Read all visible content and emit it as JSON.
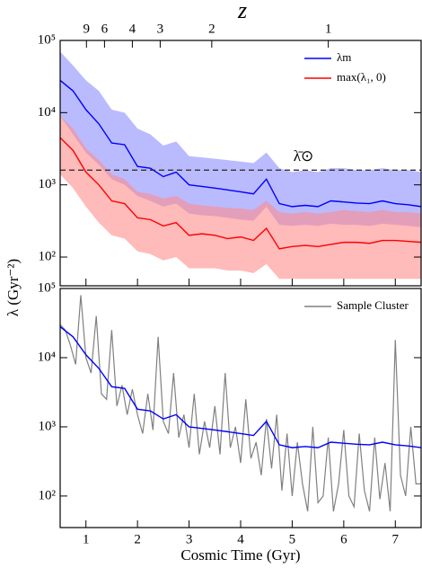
{
  "chart_data": [
    {
      "type": "line",
      "log_y": true,
      "x2label": "z",
      "xlim": [
        0.5,
        7.5
      ],
      "ylim": [
        40,
        100000
      ],
      "yticks": [
        {
          "value": 100,
          "label": "10²"
        },
        {
          "value": 1000,
          "label": "10³"
        },
        {
          "value": 10000,
          "label": "10⁴"
        },
        {
          "value": 100000,
          "label": "10⁵"
        }
      ],
      "x2ticks": [
        {
          "value": 1.01,
          "label": "9"
        },
        {
          "value": 1.36,
          "label": "6"
        },
        {
          "value": 1.9,
          "label": "4"
        },
        {
          "value": 2.44,
          "label": "3"
        },
        {
          "value": 3.44,
          "label": "2"
        },
        {
          "value": 5.7,
          "label": "1"
        }
      ],
      "legend": "upper right",
      "hline": {
        "value": 1600,
        "label": "λ̄⊙",
        "color": "#333333"
      },
      "series": [
        {
          "name": "λm",
          "color": "#0000ff",
          "band_color": "#8c8cff",
          "x": [
            0.5,
            0.75,
            1.0,
            1.25,
            1.5,
            1.75,
            2.0,
            2.25,
            2.5,
            2.75,
            3.0,
            3.25,
            3.5,
            3.75,
            4.0,
            4.25,
            4.5,
            4.75,
            5.0,
            5.25,
            5.5,
            5.75,
            6.0,
            6.25,
            6.5,
            6.75,
            7.0,
            7.25,
            7.5
          ],
          "values": [
            28000,
            20000,
            11000,
            7000,
            3800,
            3600,
            1800,
            1700,
            1300,
            1500,
            1000,
            950,
            900,
            850,
            800,
            750,
            1200,
            550,
            500,
            520,
            500,
            600,
            580,
            560,
            550,
            600,
            550,
            530,
            500
          ],
          "lower": [
            9000,
            5000,
            2800,
            1900,
            1200,
            1000,
            700,
            600,
            500,
            550,
            400,
            380,
            370,
            350,
            330,
            320,
            500,
            280,
            270,
            280,
            270,
            290,
            280,
            280,
            270,
            290,
            280,
            270,
            260
          ],
          "upper": [
            70000,
            45000,
            28000,
            20000,
            11000,
            10000,
            6000,
            5000,
            3500,
            4000,
            2500,
            2400,
            2300,
            2200,
            2100,
            2000,
            2800,
            1700,
            1500,
            1600,
            1500,
            1700,
            1700,
            1600,
            1600,
            1700,
            1600,
            1600,
            1500
          ]
        },
        {
          "name": "max(λ₁, 0)",
          "color": "#ff0000",
          "band_color": "#ff8c8c",
          "x": [
            0.5,
            0.75,
            1.0,
            1.25,
            1.5,
            1.75,
            2.0,
            2.25,
            2.5,
            2.75,
            3.0,
            3.25,
            3.5,
            3.75,
            4.0,
            4.25,
            4.5,
            4.75,
            5.0,
            5.25,
            5.5,
            5.75,
            6.0,
            6.25,
            6.5,
            6.75,
            7.0,
            7.25,
            7.5
          ],
          "values": [
            4500,
            3000,
            1500,
            1000,
            600,
            550,
            350,
            330,
            270,
            300,
            200,
            210,
            200,
            180,
            190,
            170,
            250,
            130,
            140,
            145,
            140,
            150,
            160,
            160,
            155,
            170,
            170,
            165,
            160
          ],
          "lower": [
            1400,
            900,
            500,
            300,
            200,
            180,
            120,
            110,
            90,
            100,
            70,
            70,
            70,
            65,
            65,
            60,
            80,
            50,
            50,
            50,
            50,
            50,
            50,
            50,
            50,
            50,
            50,
            50,
            50
          ],
          "upper": [
            9000,
            6000,
            3200,
            2200,
            1400,
            1200,
            800,
            750,
            650,
            700,
            550,
            520,
            500,
            480,
            470,
            450,
            600,
            420,
            400,
            420,
            400,
            420,
            450,
            430,
            420,
            450,
            420,
            420,
            400
          ]
        }
      ]
    },
    {
      "type": "line",
      "log_y": true,
      "xlabel": "Cosmic Time (Gyr)",
      "ylabel": "λ (Gyr⁻²)",
      "xlim": [
        0.5,
        7.5
      ],
      "ylim": [
        35,
        100000
      ],
      "xticks": [
        1,
        2,
        3,
        4,
        5,
        6,
        7
      ],
      "yticks": [
        {
          "value": 100,
          "label": "10²"
        },
        {
          "value": 1000,
          "label": "10³"
        },
        {
          "value": 10000,
          "label": "10⁴"
        },
        {
          "value": 100000,
          "label": "10⁵"
        }
      ],
      "legend": "upper right",
      "series": [
        {
          "name": "Sample Cluster",
          "color": "#808080",
          "x": [
            0.5,
            0.6,
            0.7,
            0.8,
            0.9,
            1.0,
            1.1,
            1.2,
            1.3,
            1.4,
            1.5,
            1.6,
            1.7,
            1.8,
            1.9,
            2.0,
            2.1,
            2.2,
            2.3,
            2.4,
            2.5,
            2.6,
            2.7,
            2.8,
            2.9,
            3.0,
            3.1,
            3.2,
            3.3,
            3.4,
            3.5,
            3.6,
            3.7,
            3.8,
            3.9,
            4.0,
            4.1,
            4.2,
            4.3,
            4.4,
            4.5,
            4.6,
            4.7,
            4.8,
            4.9,
            5.0,
            5.1,
            5.2,
            5.3,
            5.4,
            5.5,
            5.6,
            5.7,
            5.8,
            5.9,
            6.0,
            6.1,
            6.2,
            6.3,
            6.4,
            6.5,
            6.6,
            6.7,
            6.8,
            6.9,
            7.0,
            7.1,
            7.2,
            7.3,
            7.4,
            7.5
          ],
          "values": [
            30000,
            25000,
            15000,
            8000,
            80000,
            10000,
            6000,
            40000,
            3000,
            2500,
            25000,
            2000,
            4000,
            1500,
            3500,
            1500,
            800,
            3000,
            900,
            20000,
            1200,
            800,
            6000,
            700,
            1500,
            500,
            3000,
            400,
            1200,
            500,
            2000,
            400,
            6000,
            500,
            1000,
            300,
            2500,
            350,
            600,
            200,
            1300,
            250,
            1500,
            120,
            800,
            100,
            600,
            150,
            60,
            1000,
            80,
            100,
            700,
            60,
            150,
            900,
            100,
            70,
            800,
            120,
            60,
            700,
            90,
            300,
            60,
            18000,
            200,
            100,
            1000,
            150,
            150
          ]
        },
        {
          "color": "#0000ff",
          "x": [
            0.5,
            0.75,
            1.0,
            1.25,
            1.5,
            1.75,
            2.0,
            2.25,
            2.5,
            2.75,
            3.0,
            3.25,
            3.5,
            3.75,
            4.0,
            4.25,
            4.5,
            4.75,
            5.0,
            5.25,
            5.5,
            5.75,
            6.0,
            6.25,
            6.5,
            6.75,
            7.0,
            7.25,
            7.5
          ],
          "values": [
            28000,
            20000,
            11000,
            7000,
            3800,
            3600,
            1800,
            1700,
            1300,
            1500,
            1000,
            950,
            900,
            850,
            800,
            750,
            1200,
            550,
            500,
            520,
            500,
            600,
            580,
            560,
            550,
            600,
            550,
            530,
            500
          ]
        }
      ]
    }
  ]
}
